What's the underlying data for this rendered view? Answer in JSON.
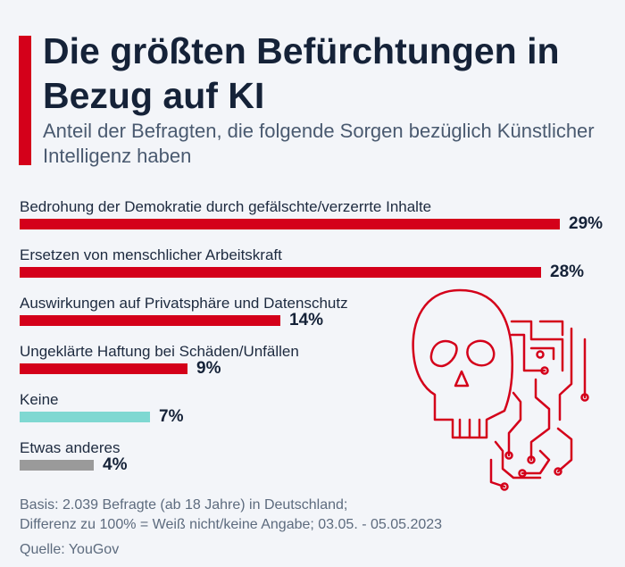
{
  "title": "Die größten Befürchtungen in Bezug auf KI",
  "subtitle": "Anteil der Befragten, die folgende Sorgen bezüglich Künstlicher Intelligenz haben",
  "colors": {
    "accent": "#d4001a",
    "highlight": "#7fd8d2",
    "neutral": "#9a9a9a"
  },
  "chart_data": {
    "type": "bar",
    "orientation": "horizontal",
    "title": "Die größten Befürchtungen in Bezug auf KI",
    "subtitle": "Anteil der Befragten, die folgende Sorgen bezüglich Künstlicher Intelligenz haben",
    "unit": "%",
    "xlim": [
      0,
      29
    ],
    "categories": [
      "Bedrohung der Demokratie durch gefälschte/verzerrte Inhalte",
      "Ersetzen von menschlicher Arbeitskraft",
      "Auswirkungen auf Privatsphäre und Datenschutz",
      "Ungeklärte Haftung bei Schäden/Unfällen",
      "Keine",
      "Etwas anderes"
    ],
    "values": [
      29,
      28,
      14,
      9,
      7,
      4
    ],
    "value_labels": [
      "29%",
      "28%",
      "14%",
      "9%",
      "7%",
      "4%"
    ],
    "bar_colors": [
      "#d4001a",
      "#d4001a",
      "#d4001a",
      "#d4001a",
      "#7fd8d2",
      "#9a9a9a"
    ],
    "grid": false
  },
  "footer": {
    "basis": "Basis: 2.039 Befragte (ab 18 Jahre) in Deutschland;",
    "note": "Differenz zu 100% = Weiß nicht/keine Angabe; 03.05. - 05.05.2023",
    "source": "Quelle: YouGov"
  },
  "illustration_icon": "skull-circuit-icon"
}
